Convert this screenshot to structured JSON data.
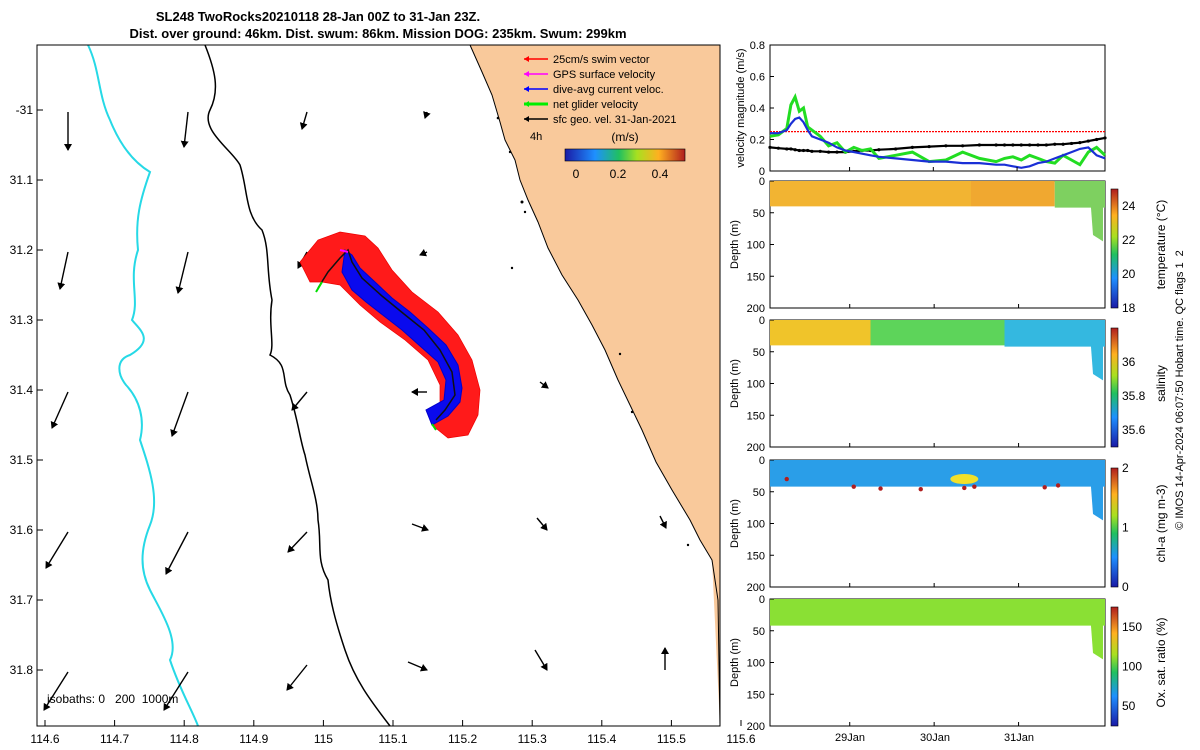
{
  "title": {
    "line1": "SL248 TwoRocks20210118 28-Jan 00Z to 31-Jan 23Z.",
    "line2": "Dist. over ground: 46km. Dist. swum: 86km. Mission DOG: 235km. Swum: 299km"
  },
  "map": {
    "x_ticks": [
      "114.6",
      "114.7",
      "114.8",
      "114.9",
      "115",
      "115.1",
      "115.2",
      "115.3",
      "115.4",
      "115.5",
      "115.6"
    ],
    "y_ticks": [
      "-31",
      "31.1",
      "31.2",
      "31.3",
      "31.4",
      "31.5",
      "31.6",
      "31.7",
      "31.8"
    ],
    "isobaths_label": "isobaths: 0   200  1000m",
    "legend": [
      {
        "label": "25cm/s swim vector",
        "color": "#ff0000"
      },
      {
        "label": "GPS surface velocity",
        "color": "#ff00ff"
      },
      {
        "label": "dive-avg current veloc.",
        "color": "#0000ff"
      },
      {
        "label": "net glider velocity",
        "color": "#00ee00"
      },
      {
        "label": "sfc geo. vel. 31-Jan-2021",
        "color": "#000000"
      }
    ],
    "legend_note": "4h",
    "colorbar": {
      "title": "(m/s)",
      "ticks": [
        "0",
        "0.2",
        "0.4"
      ]
    },
    "colors": {
      "land": "#f9c99b",
      "isobath_200": "#000000",
      "isobath_1000": "#26d9e6"
    }
  },
  "chart_data": [
    {
      "type": "line",
      "ylabel": "velocity magnitude (m/s)",
      "ylim": [
        0,
        0.8
      ],
      "y_ticks": [
        "0",
        "0.2",
        "0.4",
        "0.6",
        "0.8"
      ],
      "x_ticks": [
        "29Jan",
        "30Jan",
        "31Jan"
      ],
      "x": [
        0.0,
        0.1,
        0.2,
        0.25,
        0.3,
        0.35,
        0.4,
        0.45,
        0.5,
        0.6,
        0.7,
        0.8,
        0.9,
        1.0,
        1.1,
        1.2,
        1.3,
        1.5,
        1.7,
        1.9,
        2.1,
        2.3,
        2.5,
        2.7,
        2.8,
        2.9,
        3.0,
        3.1,
        3.2,
        3.3,
        3.4,
        3.5,
        3.6,
        3.7,
        3.8,
        3.9,
        4.0
      ],
      "series": [
        {
          "name": "swim 25cm/s",
          "color": "#ff0000",
          "values": [
            0.25,
            0.25,
            0.25,
            0.25,
            0.25,
            0.25,
            0.25,
            0.25,
            0.25,
            0.25,
            0.25,
            0.25,
            0.25,
            0.25,
            0.25,
            0.25,
            0.25,
            0.25,
            0.25,
            0.25,
            0.25,
            0.25,
            0.25,
            0.25,
            0.25,
            0.25,
            0.25,
            0.25,
            0.25,
            0.25,
            0.25,
            0.25,
            0.25,
            0.25,
            0.25,
            0.25,
            0.25
          ]
        },
        {
          "name": "sfc geo. vel.",
          "color": "#000000",
          "values": [
            0.15,
            0.145,
            0.14,
            0.14,
            0.135,
            0.13,
            0.13,
            0.13,
            0.125,
            0.125,
            0.12,
            0.12,
            0.12,
            0.125,
            0.13,
            0.13,
            0.135,
            0.14,
            0.15,
            0.155,
            0.16,
            0.16,
            0.165,
            0.165,
            0.165,
            0.165,
            0.165,
            0.165,
            0.165,
            0.165,
            0.17,
            0.17,
            0.175,
            0.18,
            0.19,
            0.2,
            0.21
          ]
        },
        {
          "name": "net glider velocity",
          "color": "#22dd22",
          "values": [
            0.22,
            0.23,
            0.27,
            0.42,
            0.47,
            0.38,
            0.4,
            0.28,
            0.26,
            0.22,
            0.16,
            0.18,
            0.12,
            0.15,
            0.13,
            0.14,
            0.08,
            0.1,
            0.12,
            0.06,
            0.07,
            0.12,
            0.08,
            0.06,
            0.08,
            0.09,
            0.07,
            0.1,
            0.08,
            0.06,
            0.05,
            0.1,
            0.07,
            0.04,
            0.12,
            0.15,
            0.1
          ]
        },
        {
          "name": "dive-avg current veloc.",
          "color": "#1a2fd6",
          "values": [
            0.24,
            0.24,
            0.26,
            0.3,
            0.33,
            0.34,
            0.31,
            0.26,
            0.22,
            0.2,
            0.18,
            0.15,
            0.13,
            0.12,
            0.11,
            0.1,
            0.09,
            0.08,
            0.07,
            0.06,
            0.06,
            0.05,
            0.05,
            0.04,
            0.04,
            0.03,
            0.02,
            0.03,
            0.05,
            0.06,
            0.08,
            0.1,
            0.12,
            0.14,
            0.15,
            0.1,
            0.08
          ]
        }
      ]
    },
    {
      "type": "heatmap",
      "variable": "temperature",
      "ylabel": "Depth (m)",
      "cbar_label": "temperature (°C)",
      "clim": [
        18,
        25
      ],
      "cbar_ticks": [
        "24",
        "22",
        "20",
        "18"
      ],
      "y_ticks": [
        "0",
        "50",
        "100",
        "150",
        "200"
      ],
      "ylim": [
        0,
        200
      ]
    },
    {
      "type": "heatmap",
      "variable": "salinity",
      "ylabel": "Depth (m)",
      "cbar_label": "salinity",
      "clim": [
        35.5,
        36.2
      ],
      "cbar_ticks": [
        "36",
        "35.8",
        "35.6"
      ],
      "y_ticks": [
        "0",
        "50",
        "100",
        "150",
        "200"
      ],
      "ylim": [
        0,
        200
      ]
    },
    {
      "type": "heatmap",
      "variable": "chl-a",
      "ylabel": "Depth (m)",
      "cbar_label": "chl-a (mg m-3)",
      "clim": [
        0,
        2
      ],
      "cbar_ticks": [
        "2",
        "1",
        "0"
      ],
      "y_ticks": [
        "0",
        "50",
        "100",
        "150",
        "200"
      ],
      "ylim": [
        0,
        200
      ]
    },
    {
      "type": "heatmap",
      "variable": "oxygen",
      "ylabel": "Depth (m)",
      "cbar_label": "Ox. sat. ratio (%)",
      "clim": [
        25,
        175
      ],
      "cbar_ticks": [
        "150",
        "100",
        "50"
      ],
      "y_ticks": [
        "0",
        "50",
        "100",
        "150",
        "200"
      ],
      "ylim": [
        0,
        200
      ]
    }
  ],
  "footer": "© IMOS 14-Apr-2024 06:07:50 Hobart time. QC flags 1  2"
}
